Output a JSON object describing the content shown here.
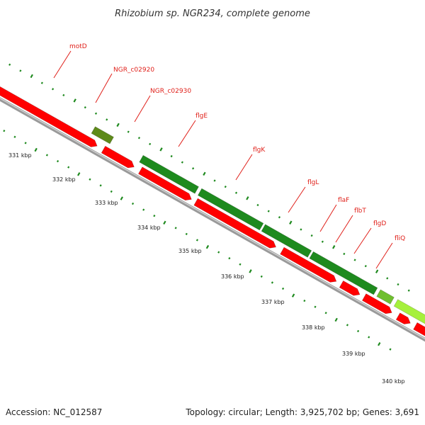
{
  "title": "Rhizobium sp. NGR234, complete genome",
  "footer": {
    "accession": "Accession: NC_012587",
    "stats": "Topology: circular; Length: 3,925,702 bp; Genes: 3,691"
  },
  "colors": {
    "forward_gene": "#1e8a1e",
    "reverse_gene": "#ff0000",
    "reverse_gene_shade": "#b80000",
    "other_feature": "#5e8a1a",
    "highlight_gene": "#a6f03c",
    "backbone": "#888888",
    "tick": "#1f8a1f",
    "label": "#e0201a"
  },
  "kbp_labels": [
    "331 kbp",
    "332 kbp",
    "333 kbp",
    "334 kbp",
    "335 kbp",
    "336 kbp",
    "337 kbp",
    "338 kbp",
    "339 kbp",
    "340 kbp"
  ],
  "gene_labels": [
    "motD",
    "NGR_c02920",
    "NGR_c02930",
    "flgE",
    "flgK",
    "flgL",
    "flaF",
    "flbT",
    "flgD",
    "fliQ"
  ]
}
